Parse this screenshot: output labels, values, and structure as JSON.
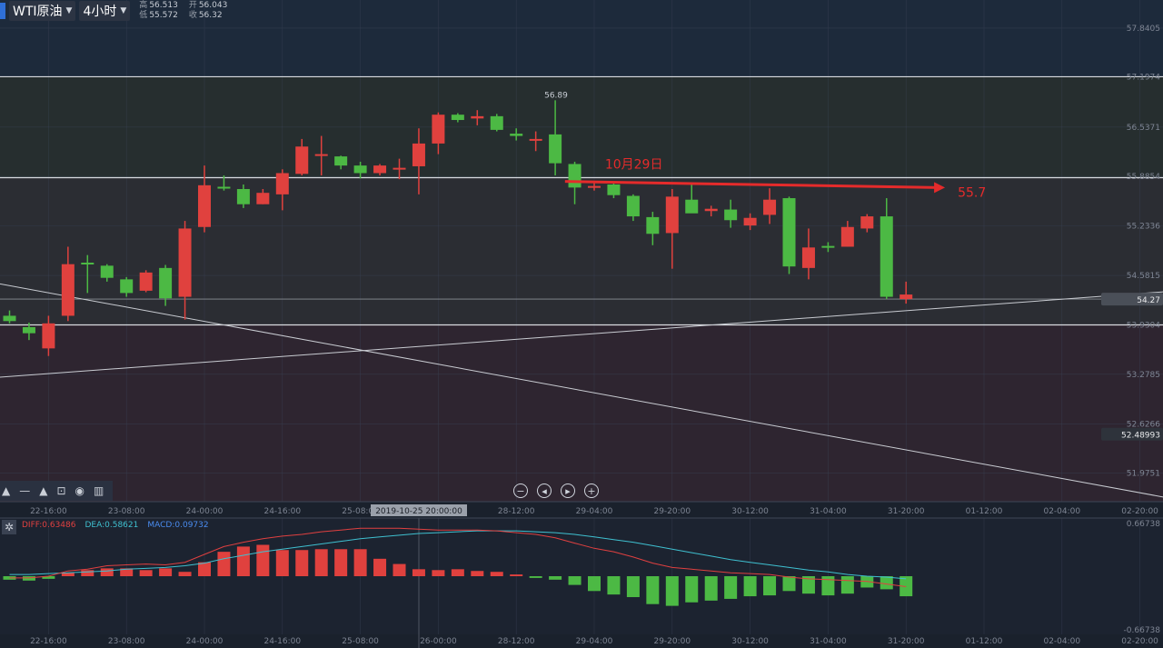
{
  "header": {
    "symbol": "WTI原油",
    "timeframe": "4小时",
    "ohlc": {
      "high_label": "高",
      "high": "56.513",
      "open_label": "开",
      "open": "56.043",
      "low_label": "低",
      "low": "55.572",
      "close_label": "收",
      "close": "56.32"
    }
  },
  "toolbox": {
    "icons": [
      "triangle-up-icon",
      "line-tool-icon",
      "triangle-up-icon",
      "lock-icon",
      "eye-icon",
      "trash-icon"
    ]
  },
  "nav_buttons": [
    "zoom-out-icon",
    "jump-start-icon",
    "jump-end-icon",
    "zoom-in-icon"
  ],
  "colors": {
    "up": "#e0413e",
    "down": "#4cb944",
    "annotation": "#e52b2b",
    "dea_line": "#3fc0d0",
    "diff_line": "#e04040"
  },
  "chart_data": {
    "type": "candlestick",
    "price_axis": {
      "range": [
        51.6,
        57.9
      ],
      "ticks": [
        "57.8405",
        "57.1974",
        "56.5371",
        "55.8854",
        "55.2336",
        "54.5815",
        "53.9304",
        "53.2785",
        "52.6266",
        "51.9751"
      ],
      "current_price": "54.27",
      "line_label": "52.48993"
    },
    "time_axis": {
      "ticks": [
        "22-16:00",
        "23-08:00",
        "24-00:00",
        "24-16:00",
        "25-08:00",
        "26-00:00",
        "28-12:00",
        "29-04:00",
        "29-20:00",
        "30-12:00",
        "31-04:00",
        "31-20:00",
        "01-12:00",
        "02-04:00",
        "02-20:00"
      ],
      "crosshair_label": "2019-10-25 20:00:00"
    },
    "candles": [
      {
        "o": 54.05,
        "h": 54.12,
        "l": 53.95,
        "c": 53.98
      },
      {
        "o": 53.9,
        "h": 53.96,
        "l": 53.73,
        "c": 53.82
      },
      {
        "o": 53.62,
        "h": 54.05,
        "l": 53.52,
        "c": 53.95
      },
      {
        "o": 54.05,
        "h": 54.96,
        "l": 53.98,
        "c": 54.73
      },
      {
        "o": 54.75,
        "h": 54.85,
        "l": 54.35,
        "c": 54.73
      },
      {
        "o": 54.71,
        "h": 54.73,
        "l": 54.5,
        "c": 54.55
      },
      {
        "o": 54.53,
        "h": 54.56,
        "l": 54.3,
        "c": 54.35
      },
      {
        "o": 54.38,
        "h": 54.65,
        "l": 54.36,
        "c": 54.62
      },
      {
        "o": 54.68,
        "h": 54.72,
        "l": 54.18,
        "c": 54.28
      },
      {
        "o": 54.3,
        "h": 55.3,
        "l": 54.0,
        "c": 55.2
      },
      {
        "o": 55.22,
        "h": 56.03,
        "l": 55.15,
        "c": 55.77
      },
      {
        "o": 55.75,
        "h": 55.9,
        "l": 55.7,
        "c": 55.73
      },
      {
        "o": 55.72,
        "h": 55.78,
        "l": 55.47,
        "c": 55.52
      },
      {
        "o": 55.52,
        "h": 55.72,
        "l": 55.52,
        "c": 55.67
      },
      {
        "o": 55.65,
        "h": 55.98,
        "l": 55.44,
        "c": 55.93
      },
      {
        "o": 55.92,
        "h": 56.38,
        "l": 55.9,
        "c": 56.28
      },
      {
        "o": 56.18,
        "h": 56.42,
        "l": 55.9,
        "c": 56.18
      },
      {
        "o": 56.15,
        "h": 56.16,
        "l": 55.98,
        "c": 56.03
      },
      {
        "o": 56.03,
        "h": 56.08,
        "l": 55.86,
        "c": 55.93
      },
      {
        "o": 55.93,
        "h": 56.05,
        "l": 55.9,
        "c": 56.03
      },
      {
        "o": 56.0,
        "h": 56.12,
        "l": 55.85,
        "c": 56.0
      },
      {
        "o": 56.02,
        "h": 56.52,
        "l": 55.65,
        "c": 56.32
      },
      {
        "o": 56.32,
        "h": 56.73,
        "l": 56.18,
        "c": 56.7
      },
      {
        "o": 56.7,
        "h": 56.72,
        "l": 56.6,
        "c": 56.63
      },
      {
        "o": 56.65,
        "h": 56.76,
        "l": 56.56,
        "c": 56.68
      },
      {
        "o": 56.68,
        "h": 56.71,
        "l": 56.48,
        "c": 56.5
      },
      {
        "o": 56.45,
        "h": 56.52,
        "l": 56.36,
        "c": 56.42
      },
      {
        "o": 56.38,
        "h": 56.48,
        "l": 56.22,
        "c": 56.38
      },
      {
        "o": 56.44,
        "h": 56.89,
        "l": 55.9,
        "c": 56.06
      },
      {
        "o": 56.05,
        "h": 56.08,
        "l": 55.52,
        "c": 55.74
      },
      {
        "o": 55.74,
        "h": 55.8,
        "l": 55.7,
        "c": 55.76
      },
      {
        "o": 55.78,
        "h": 55.82,
        "l": 55.6,
        "c": 55.64
      },
      {
        "o": 55.63,
        "h": 55.65,
        "l": 55.3,
        "c": 55.36
      },
      {
        "o": 55.35,
        "h": 55.42,
        "l": 54.98,
        "c": 55.13
      },
      {
        "o": 55.14,
        "h": 55.72,
        "l": 54.67,
        "c": 55.62
      },
      {
        "o": 55.58,
        "h": 55.8,
        "l": 55.42,
        "c": 55.4
      },
      {
        "o": 55.43,
        "h": 55.5,
        "l": 55.36,
        "c": 55.46
      },
      {
        "o": 55.45,
        "h": 55.58,
        "l": 55.21,
        "c": 55.31
      },
      {
        "o": 55.24,
        "h": 55.4,
        "l": 55.18,
        "c": 55.34
      },
      {
        "o": 55.38,
        "h": 55.73,
        "l": 55.26,
        "c": 55.58
      },
      {
        "o": 55.6,
        "h": 55.62,
        "l": 54.6,
        "c": 54.7
      },
      {
        "o": 54.68,
        "h": 55.2,
        "l": 54.53,
        "c": 54.95
      },
      {
        "o": 54.97,
        "h": 55.02,
        "l": 54.89,
        "c": 54.96
      },
      {
        "o": 54.96,
        "h": 55.3,
        "l": 54.96,
        "c": 55.22
      },
      {
        "o": 55.2,
        "h": 55.39,
        "l": 55.15,
        "c": 55.36
      },
      {
        "o": 55.36,
        "h": 55.6,
        "l": 54.27,
        "c": 54.3
      },
      {
        "o": 54.27,
        "h": 54.5,
        "l": 54.21,
        "c": 54.33
      }
    ],
    "horizontal_lines": [
      57.2,
      55.87,
      54.27,
      53.93
    ],
    "trend_lines": [
      {
        "from": {
          "i": -0.5,
          "p": 53.24
        },
        "to": {
          "i": 60.5,
          "p": 54.39
        }
      },
      {
        "from": {
          "i": -0.5,
          "p": 54.47
        },
        "to": {
          "i": 60.5,
          "p": 51.6
        }
      }
    ],
    "annotation": {
      "text": "10月29日",
      "price_label": "55.7",
      "from": {
        "i": 28.5,
        "p": 55.82
      },
      "to": {
        "i": 48.0,
        "p": 55.74
      }
    },
    "high_marker": "56.89",
    "macd": {
      "legend": {
        "diff": "DIFF:0.63486",
        "dea": "DEA:0.58621",
        "macd": "MACD:0.09732"
      },
      "range": [
        -0.66738,
        0.66738
      ],
      "ticks": [
        "0.66738",
        "-0.66738"
      ],
      "histogram": [
        -0.04,
        -0.05,
        -0.03,
        0.04,
        0.07,
        0.09,
        0.09,
        0.07,
        0.09,
        0.05,
        0.16,
        0.28,
        0.34,
        0.36,
        0.3,
        0.3,
        0.31,
        0.31,
        0.31,
        0.2,
        0.14,
        0.08,
        0.07,
        0.08,
        0.06,
        0.05,
        0.02,
        -0.02,
        -0.04,
        -0.1,
        -0.17,
        -0.21,
        -0.24,
        -0.32,
        -0.34,
        -0.3,
        -0.28,
        -0.26,
        -0.23,
        -0.22,
        -0.17,
        -0.2,
        -0.22,
        -0.2,
        -0.13,
        -0.15,
        -0.23
      ],
      "dea": [
        0.02,
        0.02,
        0.03,
        0.04,
        0.05,
        0.06,
        0.08,
        0.09,
        0.1,
        0.12,
        0.15,
        0.2,
        0.24,
        0.28,
        0.31,
        0.34,
        0.37,
        0.4,
        0.43,
        0.45,
        0.47,
        0.49,
        0.5,
        0.51,
        0.52,
        0.52,
        0.52,
        0.51,
        0.5,
        0.48,
        0.45,
        0.42,
        0.39,
        0.35,
        0.31,
        0.27,
        0.23,
        0.19,
        0.16,
        0.13,
        0.1,
        0.07,
        0.05,
        0.02,
        0.0,
        -0.01,
        -0.03
      ],
      "diff": [
        -0.02,
        -0.02,
        0.0,
        0.06,
        0.08,
        0.12,
        0.13,
        0.14,
        0.13,
        0.16,
        0.25,
        0.34,
        0.39,
        0.43,
        0.46,
        0.48,
        0.51,
        0.53,
        0.55,
        0.55,
        0.55,
        0.54,
        0.53,
        0.53,
        0.53,
        0.52,
        0.5,
        0.48,
        0.44,
        0.38,
        0.32,
        0.28,
        0.22,
        0.15,
        0.1,
        0.08,
        0.06,
        0.04,
        0.03,
        0.02,
        -0.01,
        -0.03,
        -0.04,
        -0.05,
        -0.06,
        -0.09,
        -0.12
      ]
    }
  }
}
